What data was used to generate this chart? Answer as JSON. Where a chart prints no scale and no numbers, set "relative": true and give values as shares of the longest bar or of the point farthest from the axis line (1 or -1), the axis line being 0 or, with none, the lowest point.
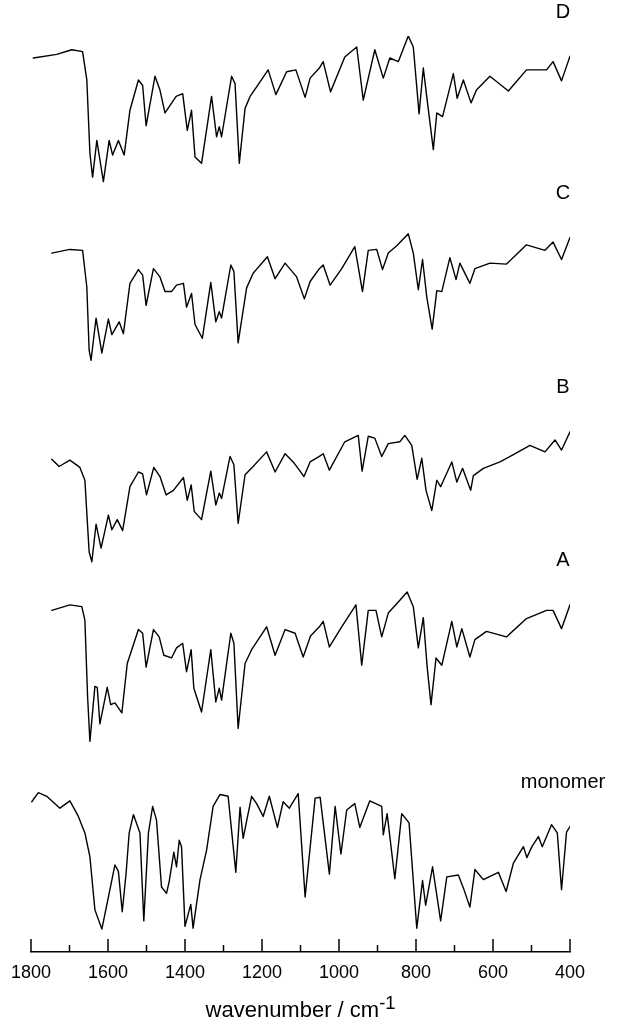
{
  "chart_data": {
    "type": "line",
    "xlabel": "wavenumber / cm$^{-1}$",
    "relative": true,
    "legend": false,
    "marker": "none",
    "line_style": "solid",
    "xlim": [
      1800,
      400
    ],
    "xticks": [
      1800,
      {
        "value": 1700,
        "label": null
      },
      1600,
      {
        "value": 1500,
        "label": null
      },
      1400,
      {
        "value": 1300,
        "label": null
      },
      1200,
      {
        "value": 1100,
        "label": null
      },
      1000,
      {
        "value": 900,
        "label": null
      },
      800,
      {
        "value": 700,
        "label": null
      },
      600,
      {
        "value": 500,
        "label": null
      },
      400
    ],
    "series": [
      {
        "name": "D",
        "color": "#000000",
        "x": [
          1794,
          1733,
          1694,
          1666,
          1655,
          1647,
          1640,
          1629,
          1612,
          1597,
          1588,
          1573,
          1558,
          1543,
          1521,
          1510,
          1501,
          1478,
          1465,
          1452,
          1441,
          1423,
          1406,
          1394,
          1383,
          1374,
          1357,
          1331,
          1318,
          1311,
          1305,
          1279,
          1270,
          1259,
          1244,
          1231,
          1184,
          1164,
          1136,
          1112,
          1088,
          1075,
          1051,
          1041,
          1022,
          985,
          954,
          937,
          907,
          885,
          868,
          846,
          820,
          807,
          792,
          781,
          771,
          755,
          746,
          731,
          703,
          693,
          677,
          657,
          643,
          608,
          560,
          513,
          461,
          444,
          422,
          400
        ],
        "values": [
          0.976,
          0.98,
          0.985,
          0.983,
          0.952,
          0.872,
          0.846,
          0.886,
          0.841,
          0.886,
          0.87,
          0.886,
          0.87,
          0.919,
          0.952,
          0.946,
          0.902,
          0.956,
          0.941,
          0.916,
          0.923,
          0.934,
          0.937,
          0.897,
          0.919,
          0.868,
          0.861,
          0.934,
          0.89,
          0.901,
          0.89,
          0.956,
          0.948,
          0.861,
          0.921,
          0.934,
          0.963,
          0.936,
          0.961,
          0.963,
          0.933,
          0.954,
          0.965,
          0.972,
          0.939,
          0.977,
          0.988,
          0.93,
          0.985,
          0.954,
          0.976,
          0.972,
          1.0,
          0.988,
          0.915,
          0.965,
          0.93,
          0.876,
          0.916,
          0.912,
          0.959,
          0.932,
          0.952,
          0.927,
          0.941,
          0.956,
          0.94,
          0.963,
          0.963,
          0.972,
          0.951,
          0.978
        ]
      },
      {
        "name": "C",
        "color": "#000000",
        "x": [
          1746,
          1699,
          1666,
          1655,
          1649,
          1644,
          1631,
          1616,
          1599,
          1590,
          1571,
          1560,
          1543,
          1521,
          1510,
          1501,
          1482,
          1465,
          1452,
          1435,
          1422,
          1404,
          1396,
          1383,
          1374,
          1355,
          1333,
          1320,
          1311,
          1305,
          1281,
          1273,
          1262,
          1240,
          1223,
          1186,
          1166,
          1140,
          1110,
          1090,
          1075,
          1051,
          1041,
          1023,
          993,
          959,
          939,
          924,
          902,
          887,
          872,
          850,
          820,
          807,
          794,
          783,
          772,
          758,
          746,
          733,
          712,
          696,
          686,
          660,
          647,
          608,
          565,
          513,
          465,
          444,
          422,
          400
        ],
        "values": [
          0.763,
          0.767,
          0.766,
          0.726,
          0.657,
          0.646,
          0.692,
          0.654,
          0.691,
          0.674,
          0.688,
          0.675,
          0.73,
          0.745,
          0.739,
          0.706,
          0.746,
          0.737,
          0.721,
          0.721,
          0.728,
          0.73,
          0.704,
          0.719,
          0.685,
          0.67,
          0.731,
          0.688,
          0.699,
          0.692,
          0.75,
          0.743,
          0.665,
          0.725,
          0.741,
          0.759,
          0.735,
          0.752,
          0.737,
          0.713,
          0.732,
          0.746,
          0.75,
          0.728,
          0.746,
          0.77,
          0.721,
          0.766,
          0.767,
          0.745,
          0.763,
          0.771,
          0.784,
          0.763,
          0.723,
          0.756,
          0.715,
          0.68,
          0.722,
          0.721,
          0.758,
          0.734,
          0.752,
          0.73,
          0.746,
          0.752,
          0.751,
          0.772,
          0.766,
          0.775,
          0.756,
          0.78
        ]
      },
      {
        "name": "B",
        "color": "#000000",
        "x": [
          1746,
          1727,
          1699,
          1673,
          1660,
          1654,
          1649,
          1642,
          1631,
          1618,
          1599,
          1590,
          1576,
          1562,
          1543,
          1521,
          1510,
          1500,
          1481,
          1465,
          1449,
          1430,
          1404,
          1394,
          1384,
          1376,
          1357,
          1333,
          1320,
          1311,
          1305,
          1283,
          1273,
          1262,
          1244,
          1223,
          1188,
          1166,
          1140,
          1119,
          1103,
          1091,
          1075,
          1051,
          1041,
          1025,
          985,
          950,
          940,
          924,
          907,
          889,
          872,
          842,
          829,
          811,
          797,
          785,
          774,
          759,
          746,
          736,
          707,
          694,
          679,
          658,
          651,
          625,
          582,
          547,
          504,
          465,
          439,
          422,
          400
        ],
        "values": [
          0.538,
          0.53,
          0.537,
          0.529,
          0.515,
          0.472,
          0.437,
          0.426,
          0.467,
          0.441,
          0.477,
          0.461,
          0.472,
          0.46,
          0.508,
          0.524,
          0.522,
          0.499,
          0.529,
          0.519,
          0.499,
          0.504,
          0.518,
          0.493,
          0.51,
          0.481,
          0.472,
          0.525,
          0.488,
          0.501,
          0.495,
          0.541,
          0.532,
          0.468,
          0.521,
          0.53,
          0.546,
          0.524,
          0.544,
          0.535,
          0.526,
          0.519,
          0.535,
          0.541,
          0.544,
          0.526,
          0.557,
          0.564,
          0.525,
          0.563,
          0.561,
          0.541,
          0.555,
          0.557,
          0.564,
          0.553,
          0.516,
          0.539,
          0.504,
          0.482,
          0.515,
          0.508,
          0.535,
          0.513,
          0.528,
          0.504,
          0.52,
          0.528,
          0.535,
          0.543,
          0.553,
          0.546,
          0.559,
          0.548,
          0.568
        ]
      },
      {
        "name": "A",
        "color": "#000000",
        "x": [
          1746,
          1699,
          1668,
          1660,
          1653,
          1647,
          1634,
          1628,
          1621,
          1602,
          1593,
          1582,
          1564,
          1550,
          1521,
          1510,
          1501,
          1482,
          1467,
          1455,
          1435,
          1422,
          1406,
          1396,
          1384,
          1377,
          1357,
          1333,
          1320,
          1311,
          1305,
          1281,
          1273,
          1262,
          1244,
          1227,
          1188,
          1166,
          1140,
          1114,
          1093,
          1074,
          1051,
          1041,
          1025,
          993,
          956,
          941,
          924,
          904,
          889,
          872,
          842,
          823,
          807,
          794,
          781,
          771,
          761,
          748,
          733,
          707,
          694,
          681,
          660,
          647,
          617,
          565,
          513,
          461,
          444,
          422,
          400
        ],
        "values": [
          0.373,
          0.379,
          0.377,
          0.362,
          0.279,
          0.23,
          0.29,
          0.289,
          0.249,
          0.289,
          0.27,
          0.272,
          0.261,
          0.315,
          0.352,
          0.348,
          0.311,
          0.352,
          0.344,
          0.324,
          0.321,
          0.332,
          0.337,
          0.306,
          0.33,
          0.288,
          0.262,
          0.33,
          0.273,
          0.288,
          0.275,
          0.348,
          0.337,
          0.244,
          0.315,
          0.33,
          0.355,
          0.324,
          0.352,
          0.348,
          0.322,
          0.345,
          0.355,
          0.361,
          0.333,
          0.355,
          0.379,
          0.313,
          0.373,
          0.373,
          0.344,
          0.37,
          0.384,
          0.393,
          0.377,
          0.332,
          0.365,
          0.311,
          0.27,
          0.321,
          0.313,
          0.361,
          0.333,
          0.353,
          0.322,
          0.341,
          0.35,
          0.344,
          0.364,
          0.373,
          0.373,
          0.353,
          0.379
        ]
      },
      {
        "name": "monomer",
        "color": "#000000",
        "x": [
          1798,
          1781,
          1759,
          1725,
          1699,
          1677,
          1660,
          1647,
          1634,
          1616,
          1599,
          1582,
          1573,
          1563,
          1553,
          1545,
          1534,
          1517,
          1507,
          1495,
          1484,
          1474,
          1461,
          1448,
          1441,
          1429,
          1422,
          1415,
          1409,
          1400,
          1385,
          1379,
          1361,
          1344,
          1327,
          1309,
          1288,
          1268,
          1257,
          1249,
          1227,
          1214,
          1197,
          1181,
          1160,
          1145,
          1129,
          1106,
          1088,
          1062,
          1049,
          1025,
          1010,
          995,
          980,
          959,
          946,
          920,
          889,
          885,
          875,
          855,
          837,
          818,
          798,
          783,
          775,
          757,
          736,
          720,
          690,
          677,
          660,
          647,
          625,
          586,
          566,
          547,
          521,
          512,
          499,
          482,
          472,
          448,
          433,
          422,
          409,
          400
        ],
        "values": [
          0.164,
          0.174,
          0.17,
          0.157,
          0.165,
          0.148,
          0.13,
          0.104,
          0.046,
          0.025,
          0.06,
          0.095,
          0.088,
          0.044,
          0.086,
          0.13,
          0.15,
          0.13,
          0.034,
          0.13,
          0.159,
          0.144,
          0.071,
          0.064,
          0.077,
          0.109,
          0.093,
          0.122,
          0.115,
          0.028,
          0.052,
          0.026,
          0.079,
          0.111,
          0.159,
          0.172,
          0.17,
          0.087,
          0.158,
          0.124,
          0.17,
          0.162,
          0.148,
          0.17,
          0.136,
          0.164,
          0.157,
          0.173,
          0.06,
          0.168,
          0.169,
          0.085,
          0.159,
          0.107,
          0.155,
          0.162,
          0.136,
          0.165,
          0.159,
          0.128,
          0.151,
          0.08,
          0.151,
          0.141,
          0.026,
          0.078,
          0.051,
          0.093,
          0.034,
          0.082,
          0.084,
          0.07,
          0.049,
          0.09,
          0.079,
          0.087,
          0.066,
          0.097,
          0.115,
          0.103,
          0.115,
          0.126,
          0.115,
          0.139,
          0.13,
          0.068,
          0.131,
          0.137
        ]
      }
    ]
  }
}
